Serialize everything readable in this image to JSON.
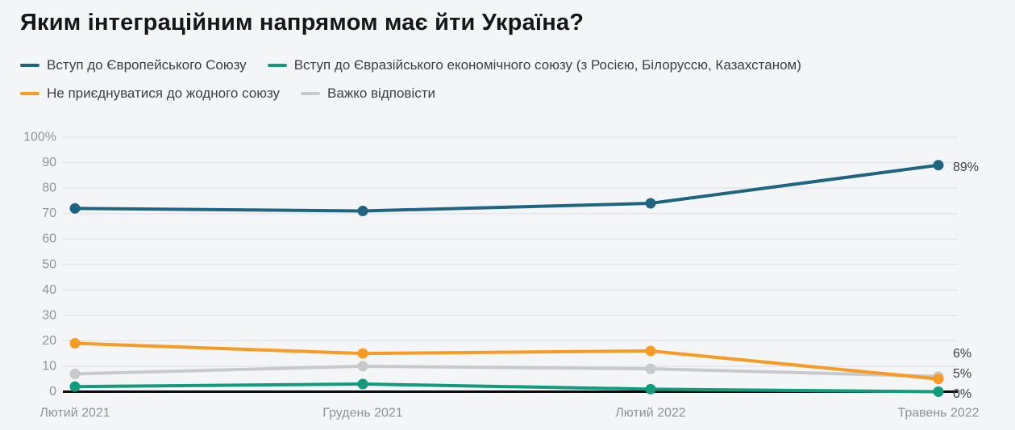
{
  "title": "Яким інтеграційним напрямом має йти Україна?",
  "colors": {
    "background": "#f3f5f6",
    "grid": "#e3e7e9",
    "axis_line": "#0b0b0b",
    "tick_text": "#8f959a",
    "end_label_text": "#3b3f43",
    "title_text": "#151618",
    "legend_text": "#3b3f43"
  },
  "chart_data": {
    "type": "line",
    "title": "Яким інтеграційним напрямом має йти Україна?",
    "categories": [
      "Лютий 2021",
      "Грудень 2021",
      "Лютий 2022",
      "Травень 2022"
    ],
    "series": [
      {
        "name": "Вступ до Європейського Союзу",
        "color": "#1f6582",
        "values": [
          72,
          71,
          74,
          89
        ],
        "end_label": "89%"
      },
      {
        "name": "Вступ до Євразійського економічного союзу (з Росією, Білоруссю, Казахстаном)",
        "color": "#129b7c",
        "values": [
          2,
          3,
          1,
          0
        ],
        "end_label": "0%"
      },
      {
        "name": "Не приєднуватися до жодного союзу",
        "color": "#f79b23",
        "values": [
          19,
          15,
          16,
          5
        ],
        "end_label": "5%"
      },
      {
        "name": "Важко відповісти",
        "color": "#c7c9cb",
        "values": [
          7,
          10,
          9,
          6
        ],
        "end_label": "6%"
      }
    ],
    "ylim": [
      0,
      100
    ],
    "y_ticks": [
      "100%",
      "90",
      "80",
      "70",
      "60",
      "50",
      "40",
      "30",
      "20",
      "10",
      "0"
    ],
    "xlabel": "",
    "ylabel": "",
    "grid": "horizontal",
    "legend_position": "top"
  }
}
